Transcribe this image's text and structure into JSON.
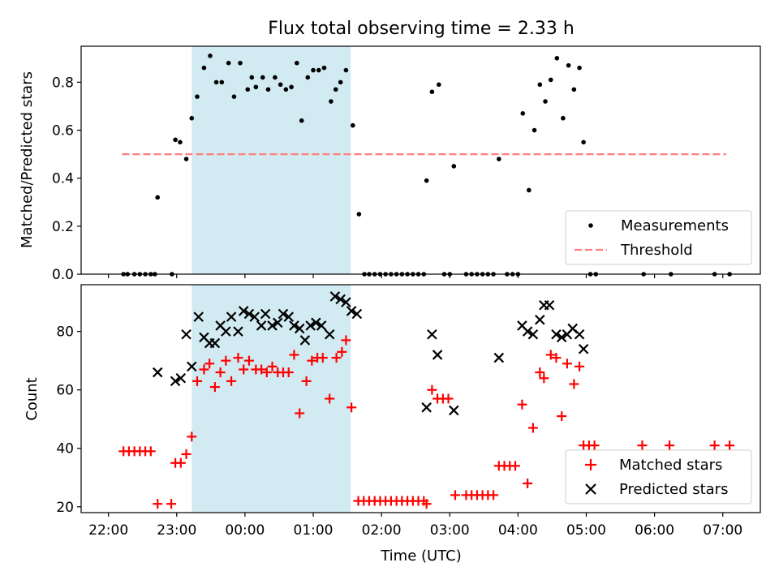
{
  "title": "Flux total observing time = 2.33 h",
  "chart_data": [
    {
      "type": "scatter",
      "ylabel": "Matched/Predicted stars",
      "xlabel": "",
      "ylim": [
        0,
        0.95
      ],
      "yticks": [
        0.0,
        0.2,
        0.4,
        0.6,
        0.8
      ],
      "ytick_labels": [
        "0.0",
        "0.2",
        "0.4",
        "0.6",
        "0.8"
      ],
      "shaded_interval": [
        23.22,
        25.55
      ],
      "shade_color": "#add8e6",
      "threshold": {
        "name": "Threshold",
        "y": 0.5,
        "x_range": [
          22.2,
          31.05
        ],
        "color": "#ff7f7f"
      },
      "legend": {
        "position": "lower-right",
        "entries": [
          "Measurements",
          "Threshold"
        ]
      },
      "series": [
        {
          "name": "Measurements",
          "color": "#000000",
          "points": [
            [
              22.22,
              0
            ],
            [
              22.28,
              0
            ],
            [
              22.38,
              0
            ],
            [
              22.46,
              0
            ],
            [
              22.54,
              0
            ],
            [
              22.62,
              0
            ],
            [
              22.68,
              0
            ],
            [
              22.72,
              0.32
            ],
            [
              22.93,
              0
            ],
            [
              22.98,
              0.56
            ],
            [
              23.05,
              0.55
            ],
            [
              23.14,
              0.48
            ],
            [
              23.22,
              0.65
            ],
            [
              23.3,
              0.74
            ],
            [
              23.4,
              0.86
            ],
            [
              23.49,
              0.91
            ],
            [
              23.58,
              0.8
            ],
            [
              23.66,
              0.8
            ],
            [
              23.76,
              0.88
            ],
            [
              23.84,
              0.74
            ],
            [
              23.93,
              0.88
            ],
            [
              24.04,
              0.77
            ],
            [
              24.1,
              0.82
            ],
            [
              24.16,
              0.78
            ],
            [
              24.26,
              0.82
            ],
            [
              24.34,
              0.77
            ],
            [
              24.44,
              0.82
            ],
            [
              24.52,
              0.79
            ],
            [
              24.6,
              0.77
            ],
            [
              24.68,
              0.78
            ],
            [
              24.76,
              0.88
            ],
            [
              24.83,
              0.64
            ],
            [
              24.92,
              0.82
            ],
            [
              25.0,
              0.85
            ],
            [
              25.08,
              0.85
            ],
            [
              25.16,
              0.86
            ],
            [
              25.26,
              0.72
            ],
            [
              25.33,
              0.77
            ],
            [
              25.4,
              0.8
            ],
            [
              25.48,
              0.85
            ],
            [
              25.58,
              0.62
            ],
            [
              25.67,
              0.25
            ],
            [
              25.75,
              0
            ],
            [
              25.82,
              0
            ],
            [
              25.9,
              0
            ],
            [
              25.98,
              0
            ],
            [
              26.06,
              0
            ],
            [
              26.14,
              0
            ],
            [
              26.22,
              0
            ],
            [
              26.3,
              0
            ],
            [
              26.38,
              0
            ],
            [
              26.46,
              0
            ],
            [
              26.54,
              0
            ],
            [
              26.62,
              0
            ],
            [
              26.66,
              0.39
            ],
            [
              26.74,
              0.76
            ],
            [
              26.84,
              0.79
            ],
            [
              26.92,
              0
            ],
            [
              27.0,
              0
            ],
            [
              27.06,
              0.45
            ],
            [
              27.24,
              0
            ],
            [
              27.32,
              0
            ],
            [
              27.4,
              0
            ],
            [
              27.48,
              0
            ],
            [
              27.56,
              0
            ],
            [
              27.64,
              0
            ],
            [
              27.72,
              0.48
            ],
            [
              27.84,
              0
            ],
            [
              27.92,
              0
            ],
            [
              28.0,
              0
            ],
            [
              28.07,
              0.67
            ],
            [
              28.16,
              0.35
            ],
            [
              28.24,
              0.6
            ],
            [
              28.32,
              0.79
            ],
            [
              28.4,
              0.72
            ],
            [
              28.48,
              0.81
            ],
            [
              28.57,
              0.9
            ],
            [
              28.66,
              0.65
            ],
            [
              28.74,
              0.87
            ],
            [
              28.82,
              0.77
            ],
            [
              28.9,
              0.86
            ],
            [
              28.96,
              0.55
            ],
            [
              29.06,
              0
            ],
            [
              29.14,
              0
            ],
            [
              29.84,
              0
            ],
            [
              30.24,
              0
            ],
            [
              30.88,
              0
            ],
            [
              31.1,
              0
            ]
          ]
        }
      ],
      "xticks": [
        22,
        23,
        24,
        25,
        26,
        27,
        28,
        29,
        30,
        31
      ]
    },
    {
      "type": "scatter",
      "ylabel": "Count",
      "xlabel": "Time (UTC)",
      "xlim": [
        21.6,
        31.55
      ],
      "ylim": [
        18,
        96
      ],
      "yticks": [
        20,
        40,
        60,
        80
      ],
      "ytick_labels": [
        "20",
        "40",
        "60",
        "80"
      ],
      "xticks": [
        22,
        23,
        24,
        25,
        26,
        27,
        28,
        29,
        30,
        31
      ],
      "xtick_labels": [
        "22:00",
        "23:00",
        "00:00",
        "01:00",
        "02:00",
        "03:00",
        "04:00",
        "05:00",
        "06:00",
        "07:00"
      ],
      "shaded_interval": [
        23.22,
        25.55
      ],
      "shade_color": "#add8e6",
      "legend": {
        "position": "lower-right",
        "entries": [
          "Matched stars",
          "Predicted stars"
        ]
      },
      "series": [
        {
          "name": "Matched stars",
          "color": "#ff0000",
          "marker": "plus",
          "points": [
            [
              22.22,
              39
            ],
            [
              22.3,
              39
            ],
            [
              22.38,
              39
            ],
            [
              22.46,
              39
            ],
            [
              22.54,
              39
            ],
            [
              22.62,
              39
            ],
            [
              22.72,
              21
            ],
            [
              22.92,
              21
            ],
            [
              22.98,
              35
            ],
            [
              23.06,
              35
            ],
            [
              23.14,
              38
            ],
            [
              23.22,
              44
            ],
            [
              23.3,
              63
            ],
            [
              23.4,
              67
            ],
            [
              23.48,
              69
            ],
            [
              23.56,
              61
            ],
            [
              23.64,
              66
            ],
            [
              23.72,
              70
            ],
            [
              23.8,
              63
            ],
            [
              23.9,
              71
            ],
            [
              23.98,
              67
            ],
            [
              24.06,
              70
            ],
            [
              24.16,
              67
            ],
            [
              24.24,
              67
            ],
            [
              24.32,
              66
            ],
            [
              24.4,
              68
            ],
            [
              24.48,
              66
            ],
            [
              24.56,
              66
            ],
            [
              24.64,
              66
            ],
            [
              24.72,
              72
            ],
            [
              24.8,
              52
            ],
            [
              24.9,
              63
            ],
            [
              24.98,
              70
            ],
            [
              25.06,
              71
            ],
            [
              25.14,
              71
            ],
            [
              25.24,
              57
            ],
            [
              25.34,
              71
            ],
            [
              25.42,
              73
            ],
            [
              25.48,
              77
            ],
            [
              25.56,
              54
            ],
            [
              25.66,
              22
            ],
            [
              25.74,
              22
            ],
            [
              25.82,
              22
            ],
            [
              25.9,
              22
            ],
            [
              25.98,
              22
            ],
            [
              26.06,
              22
            ],
            [
              26.14,
              22
            ],
            [
              26.22,
              22
            ],
            [
              26.3,
              22
            ],
            [
              26.38,
              22
            ],
            [
              26.46,
              22
            ],
            [
              26.54,
              22
            ],
            [
              26.62,
              22
            ],
            [
              26.66,
              21
            ],
            [
              26.74,
              60
            ],
            [
              26.82,
              57
            ],
            [
              26.9,
              57
            ],
            [
              26.98,
              57
            ],
            [
              27.08,
              24
            ],
            [
              27.24,
              24
            ],
            [
              27.32,
              24
            ],
            [
              27.4,
              24
            ],
            [
              27.48,
              24
            ],
            [
              27.56,
              24
            ],
            [
              27.64,
              24
            ],
            [
              27.72,
              34
            ],
            [
              27.8,
              34
            ],
            [
              27.88,
              34
            ],
            [
              27.96,
              34
            ],
            [
              28.06,
              55
            ],
            [
              28.14,
              28
            ],
            [
              28.22,
              47
            ],
            [
              28.32,
              66
            ],
            [
              28.38,
              64
            ],
            [
              28.48,
              72
            ],
            [
              28.56,
              71
            ],
            [
              28.64,
              51
            ],
            [
              28.72,
              69
            ],
            [
              28.82,
              62
            ],
            [
              28.9,
              68
            ],
            [
              28.96,
              41
            ],
            [
              29.04,
              41
            ],
            [
              29.12,
              41
            ],
            [
              29.82,
              41
            ],
            [
              30.22,
              41
            ],
            [
              30.88,
              41
            ],
            [
              31.1,
              41
            ]
          ]
        },
        {
          "name": "Predicted stars",
          "color": "#000000",
          "marker": "x",
          "points": [
            [
              22.72,
              66
            ],
            [
              22.98,
              63
            ],
            [
              23.06,
              64
            ],
            [
              23.14,
              79
            ],
            [
              23.22,
              68
            ],
            [
              23.32,
              85
            ],
            [
              23.4,
              78
            ],
            [
              23.48,
              76
            ],
            [
              23.56,
              76
            ],
            [
              23.64,
              82
            ],
            [
              23.72,
              80
            ],
            [
              23.8,
              85
            ],
            [
              23.9,
              80
            ],
            [
              23.98,
              87
            ],
            [
              24.06,
              86
            ],
            [
              24.14,
              85
            ],
            [
              24.24,
              82
            ],
            [
              24.3,
              86
            ],
            [
              24.4,
              82
            ],
            [
              24.48,
              83
            ],
            [
              24.56,
              86
            ],
            [
              24.64,
              85
            ],
            [
              24.72,
              82
            ],
            [
              24.8,
              81
            ],
            [
              24.88,
              77
            ],
            [
              24.96,
              82
            ],
            [
              25.04,
              83
            ],
            [
              25.12,
              82
            ],
            [
              25.24,
              79
            ],
            [
              25.32,
              92
            ],
            [
              25.4,
              91
            ],
            [
              25.48,
              90
            ],
            [
              25.56,
              87
            ],
            [
              25.64,
              86
            ],
            [
              26.66,
              54
            ],
            [
              26.74,
              79
            ],
            [
              26.82,
              72
            ],
            [
              27.06,
              53
            ],
            [
              27.72,
              71
            ],
            [
              28.06,
              82
            ],
            [
              28.14,
              80
            ],
            [
              28.22,
              79
            ],
            [
              28.32,
              84
            ],
            [
              28.38,
              89
            ],
            [
              28.46,
              89
            ],
            [
              28.56,
              79
            ],
            [
              28.64,
              78
            ],
            [
              28.72,
              79
            ],
            [
              28.8,
              81
            ],
            [
              28.9,
              79
            ],
            [
              28.96,
              74
            ]
          ]
        }
      ]
    }
  ]
}
